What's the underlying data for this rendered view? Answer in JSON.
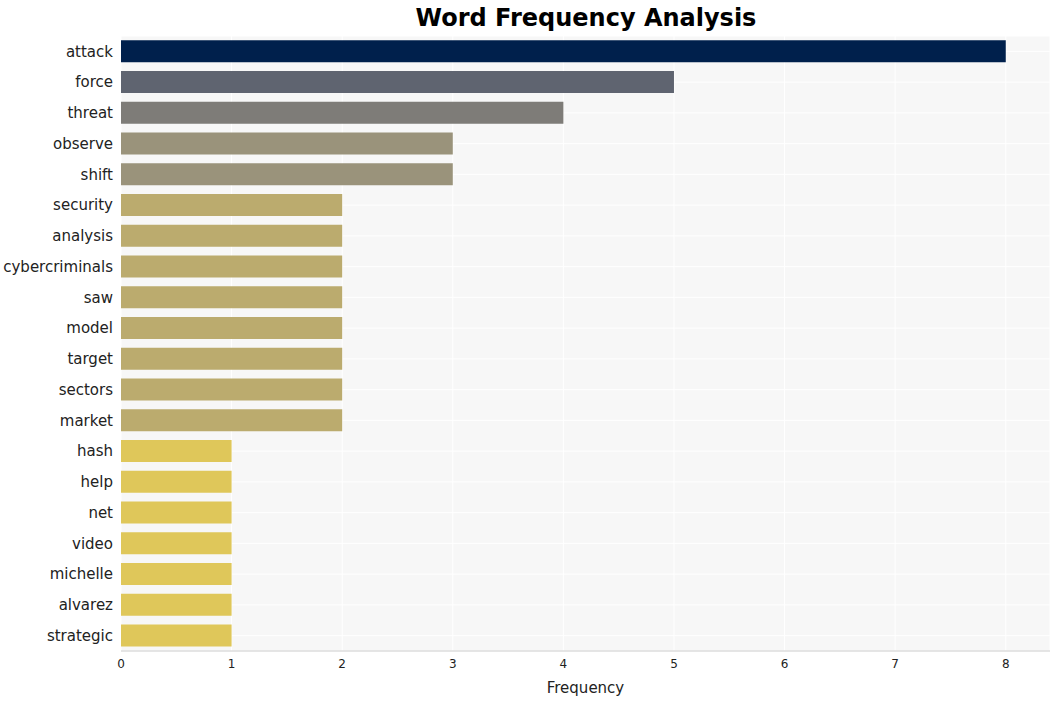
{
  "chart_data": {
    "type": "bar",
    "orientation": "horizontal",
    "title": "Word Frequency Analysis",
    "x_label": "Frequency",
    "categories": [
      "attack",
      "force",
      "threat",
      "observe",
      "shift",
      "security",
      "analysis",
      "cybercriminals",
      "saw",
      "model",
      "target",
      "sectors",
      "market",
      "hash",
      "help",
      "net",
      "video",
      "michelle",
      "alvarez",
      "strategic"
    ],
    "values": [
      8,
      5,
      4,
      3,
      3,
      2,
      2,
      2,
      2,
      2,
      2,
      2,
      2,
      1,
      1,
      1,
      1,
      1,
      1,
      1
    ],
    "colors": [
      "#00204c",
      "#5f6470",
      "#7e7c78",
      "#9a937b",
      "#9a937b",
      "#bbab6e",
      "#bbab6e",
      "#bbab6e",
      "#bbab6e",
      "#bbab6e",
      "#bbab6e",
      "#bbab6e",
      "#bbab6e",
      "#dfc75a",
      "#dfc75a",
      "#dfc75a",
      "#dfc75a",
      "#dfc75a",
      "#dfc75a",
      "#dfc75a"
    ],
    "xlim": [
      0,
      8.4
    ],
    "xticks": [
      0,
      1,
      2,
      3,
      4,
      5,
      6,
      7,
      8
    ],
    "grid": true
  }
}
